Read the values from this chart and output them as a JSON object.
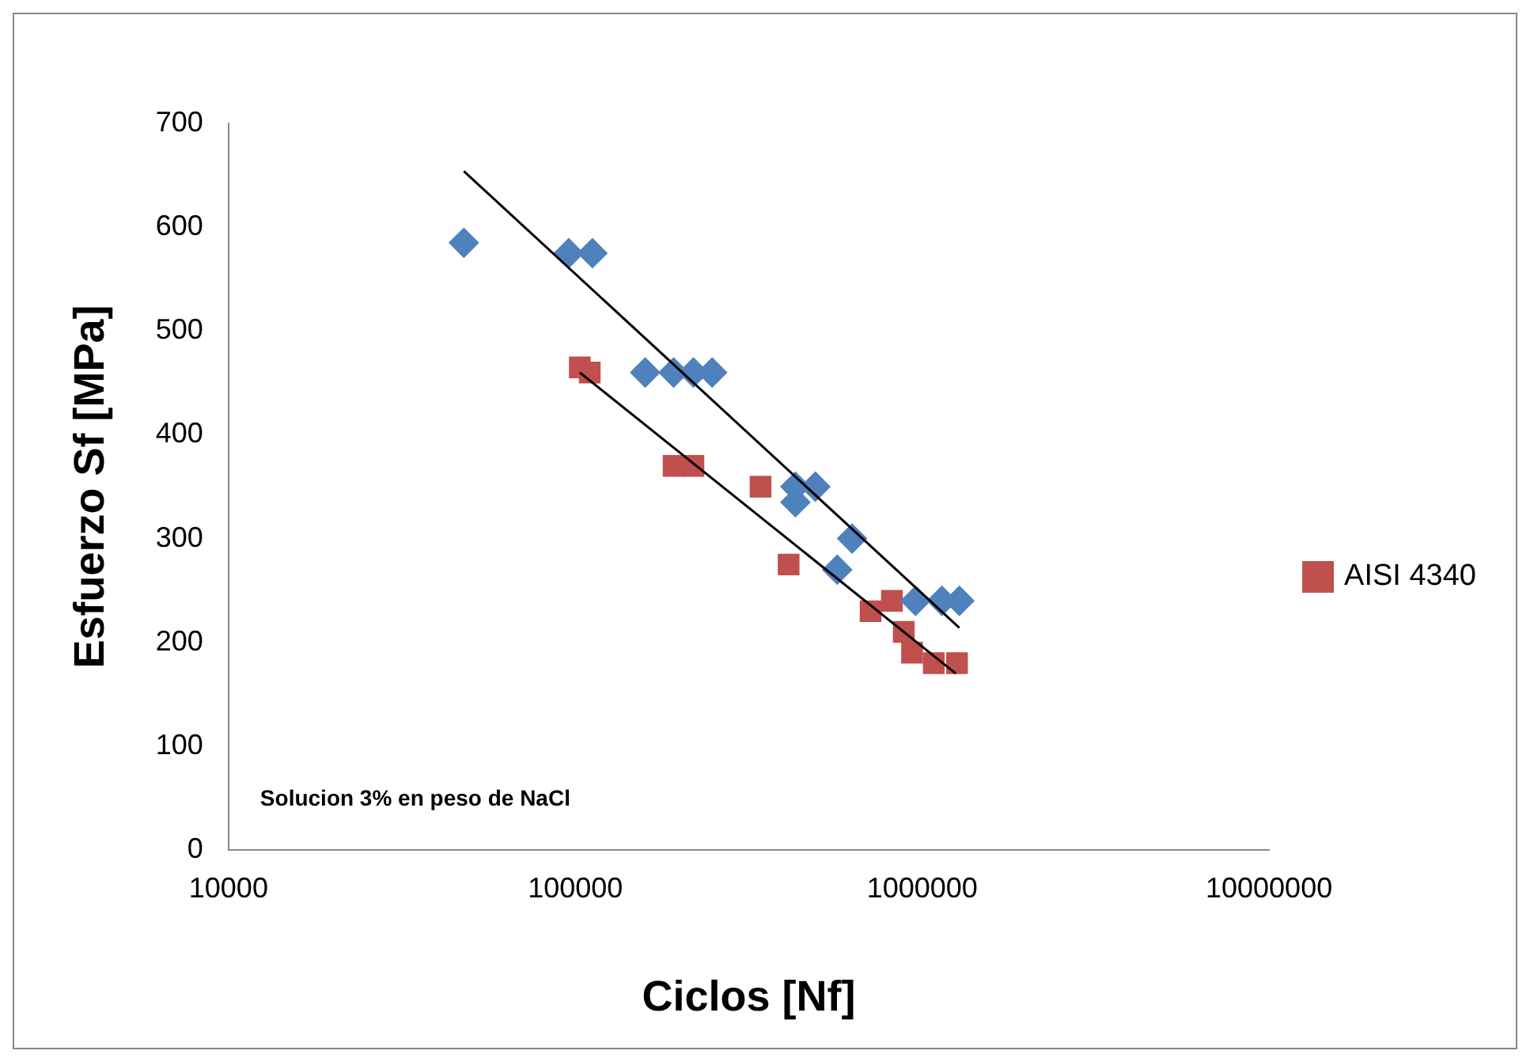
{
  "chart_data": {
    "type": "scatter",
    "xlabel": "Ciclos [Nf]",
    "ylabel": "Esfuerzo Sf [MPa]",
    "log": "x",
    "xlim": [
      10000,
      10000000
    ],
    "xticks": [
      10000,
      100000,
      1000000,
      10000000
    ],
    "ylim": [
      0,
      700
    ],
    "yticks": [
      0,
      100,
      200,
      300,
      400,
      500,
      600,
      700
    ],
    "grid": false,
    "legend": "right",
    "annotations": [
      "Solucion 3% en peso de NaCl"
    ],
    "series": [
      {
        "color": "#4f81bd",
        "marker": "diamond",
        "x": [
          47700,
          95700,
          112000,
          159000,
          192000,
          219000,
          248000,
          431000,
          492000,
          431000,
          628000,
          569000,
          957000,
          1140000,
          1280000
        ],
        "values": [
          585,
          575,
          575,
          460,
          460,
          460,
          460,
          350,
          350,
          335,
          300,
          270,
          240,
          240,
          240
        ]
      },
      {
        "name": "AISI 4340",
        "color": "#c0504d",
        "marker": "square",
        "x": [
          103000,
          110000,
          192000,
          219000,
          342000,
          412000,
          710000,
          818000,
          885000,
          935000,
          1080000,
          1260000
        ],
        "values": [
          465,
          460,
          370,
          370,
          350,
          275,
          230,
          240,
          210,
          190,
          180,
          180
        ]
      },
      {
        "type": "line",
        "color": "#000000",
        "marker": "none",
        "x": [
          47700,
          1280000
        ],
        "values": [
          654,
          214
        ]
      },
      {
        "type": "line",
        "color": "#000000",
        "marker": "none",
        "x": [
          103000,
          1250000
        ],
        "values": [
          460,
          170
        ]
      }
    ]
  }
}
